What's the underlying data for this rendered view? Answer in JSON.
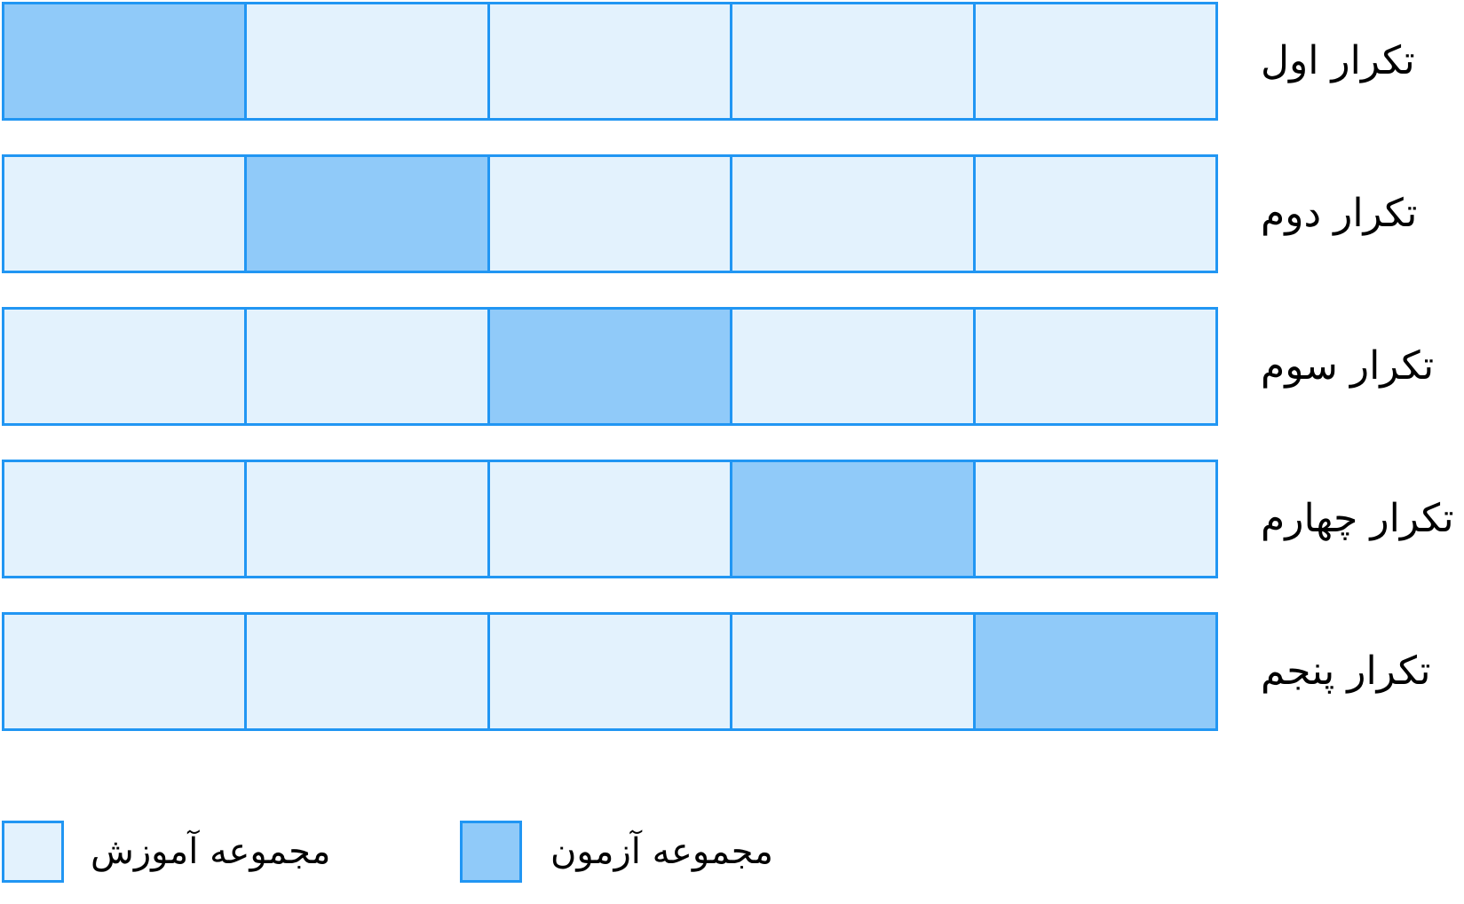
{
  "colors": {
    "train": "#E3F2FD",
    "test": "#90CAF9",
    "border": "#2196F3",
    "text": "#000000"
  },
  "folds": [
    {
      "label": "تکرار اول",
      "segments": [
        "test",
        "train",
        "train",
        "train",
        "train"
      ]
    },
    {
      "label": "تکرار دوم",
      "segments": [
        "train",
        "test",
        "train",
        "train",
        "train"
      ]
    },
    {
      "label": "تکرار سوم",
      "segments": [
        "train",
        "train",
        "test",
        "train",
        "train"
      ]
    },
    {
      "label": "تکرار چهارم",
      "segments": [
        "train",
        "train",
        "train",
        "test",
        "train"
      ]
    },
    {
      "label": "تکرار پنجم",
      "segments": [
        "train",
        "train",
        "train",
        "train",
        "test"
      ]
    }
  ],
  "legend": {
    "train_label": "مجموعه آموزش",
    "test_label": "مجموعه آزمون"
  }
}
